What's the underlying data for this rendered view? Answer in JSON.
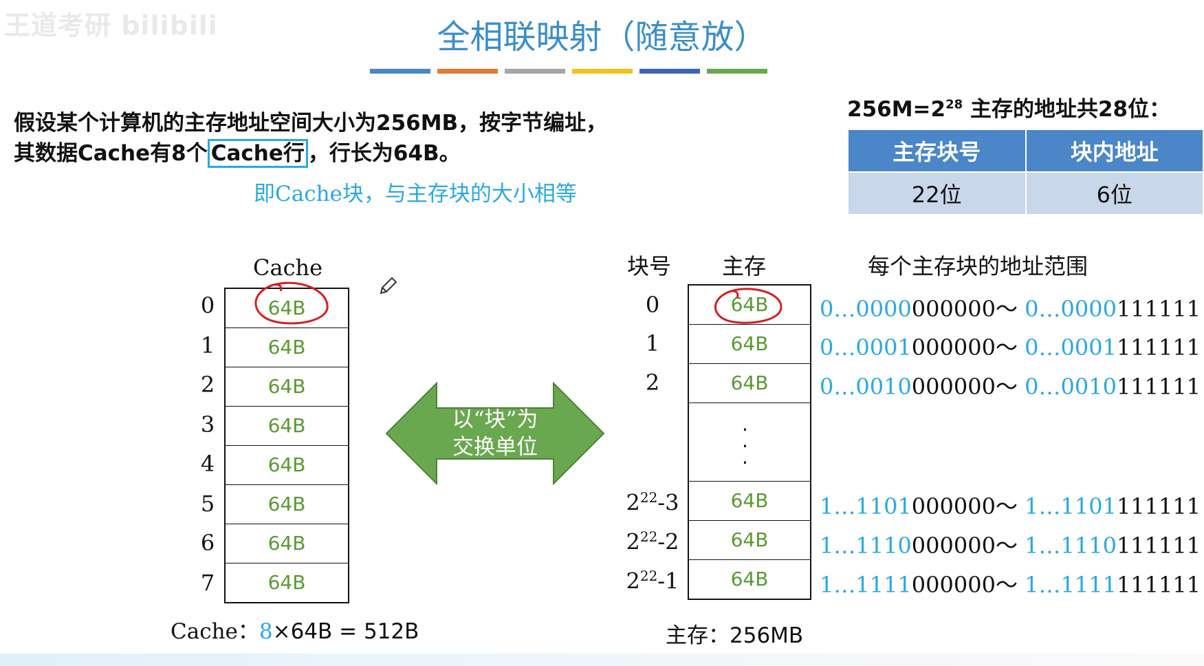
{
  "watermark": "王道考研 bilibili",
  "title": "全相联映射（随意放）",
  "colors": {
    "title": "#3b8ec9",
    "accent_blue": "#2aa9e0",
    "cell_green": "#5a9a32",
    "arrow_green": "#6aa84f",
    "table_header": "#4a86c8",
    "table_cell": "#c9d7ea"
  },
  "bar_colors": [
    "#4a86c8",
    "#e47a34",
    "#a5a5a5",
    "#f3c11d",
    "#3c64b4",
    "#6aa84f"
  ],
  "problem": {
    "pre_box": "假设某个计算机的主存地址空间大小为256MB，按字节编址，其数据Cache有8个",
    "boxed": "Cache行",
    "post_box": "，行长为64B。",
    "note": "即Cache块，与主存块的大小相等"
  },
  "address": {
    "formula_prefix": "256M=2",
    "formula_exp": "28",
    "formula_suffix": " 主存的地址共28位：",
    "headers": [
      "主存块号",
      "块内地址"
    ],
    "values": [
      "22位",
      "6位"
    ]
  },
  "cache": {
    "label": "Cache",
    "indices": [
      "0",
      "1",
      "2",
      "3",
      "4",
      "5",
      "6",
      "7"
    ],
    "cells": [
      "64B",
      "64B",
      "64B",
      "64B",
      "64B",
      "64B",
      "64B",
      "64B"
    ],
    "total_prefix": "Cache：",
    "total_count": "8",
    "total_suffix": "×64B = 512B"
  },
  "arrow": {
    "line1": "以“块”为",
    "line2": "交换单位"
  },
  "memory": {
    "col_block": "块号",
    "col_mem": "主存",
    "col_range": "每个主存块的地址范围",
    "rows": [
      {
        "idx_base": "0",
        "idx_exp": "",
        "idx_tail": "",
        "cell": "64B",
        "hi": "0…0000",
        "lo": "000000",
        "sep": "～ ",
        "hi2": "0…0000",
        "lo2": "111111"
      },
      {
        "idx_base": "1",
        "idx_exp": "",
        "idx_tail": "",
        "cell": "64B",
        "hi": "0…0001",
        "lo": "000000",
        "sep": "～ ",
        "hi2": "0…0001",
        "lo2": "111111"
      },
      {
        "idx_base": "2",
        "idx_exp": "",
        "idx_tail": "",
        "cell": "64B",
        "hi": "0…0010",
        "lo": "000000",
        "sep": "～ ",
        "hi2": "0…0010",
        "lo2": "111111"
      },
      {
        "idx_base": "2",
        "idx_exp": "22",
        "idx_tail": "-3",
        "cell": "64B",
        "hi": "1…1101",
        "lo": "000000",
        "sep": "～ ",
        "hi2": "1…1101",
        "lo2": "111111"
      },
      {
        "idx_base": "2",
        "idx_exp": "22",
        "idx_tail": "-2",
        "cell": "64B",
        "hi": "1…1110",
        "lo": "000000",
        "sep": "～ ",
        "hi2": "1…1110",
        "lo2": "111111"
      },
      {
        "idx_base": "2",
        "idx_exp": "22",
        "idx_tail": "-1",
        "cell": "64B",
        "hi": "1…1111",
        "lo": "000000",
        "sep": "～ ",
        "hi2": "1…1111",
        "lo2": "111111"
      }
    ],
    "ellipsis": ".\n.\n.",
    "total": "主存：256MB"
  }
}
